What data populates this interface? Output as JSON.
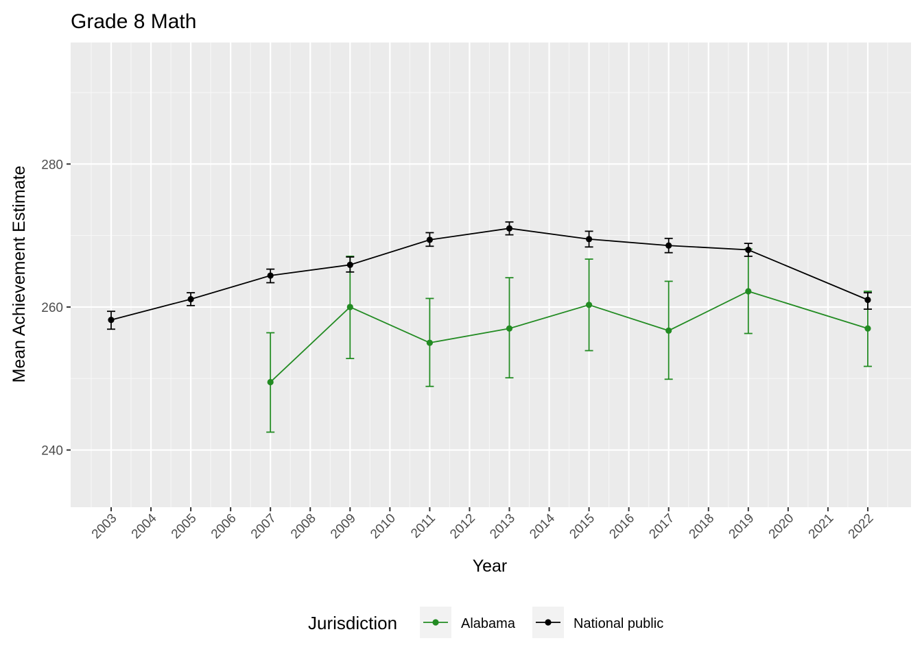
{
  "chart_data": {
    "type": "line",
    "title": "Grade 8 Math",
    "xlabel": "Year",
    "ylabel": "Mean Achievement Estimate",
    "ylim": [
      232,
      297
    ],
    "yticks": [
      240,
      260,
      280
    ],
    "x": [
      "2003",
      "2004",
      "2005",
      "2006",
      "2007",
      "2008",
      "2009",
      "2010",
      "2011",
      "2012",
      "2013",
      "2014",
      "2015",
      "2016",
      "2017",
      "2018",
      "2019",
      "2020",
      "2021",
      "2022"
    ],
    "grid": true,
    "legend": {
      "title": "Jurisdiction",
      "position": "bottom"
    },
    "series": [
      {
        "name": "Alabama",
        "color": "#228B22",
        "points": [
          {
            "x": "2007",
            "y": 249.5,
            "low": 242.5,
            "high": 256.4
          },
          {
            "x": "2009",
            "y": 260.0,
            "low": 252.8,
            "high": 267.1
          },
          {
            "x": "2011",
            "y": 255.0,
            "low": 248.9,
            "high": 261.2
          },
          {
            "x": "2013",
            "y": 257.0,
            "low": 250.1,
            "high": 264.1
          },
          {
            "x": "2015",
            "y": 260.3,
            "low": 253.9,
            "high": 266.7
          },
          {
            "x": "2017",
            "y": 256.7,
            "low": 249.9,
            "high": 263.6
          },
          {
            "x": "2019",
            "y": 262.2,
            "low": 256.3,
            "high": 268.1
          },
          {
            "x": "2022",
            "y": 257.0,
            "low": 251.7,
            "high": 262.2
          }
        ]
      },
      {
        "name": "National public",
        "color": "#000000",
        "points": [
          {
            "x": "2003",
            "y": 258.2,
            "low": 256.9,
            "high": 259.4
          },
          {
            "x": "2005",
            "y": 261.1,
            "low": 260.2,
            "high": 262.0
          },
          {
            "x": "2007",
            "y": 264.4,
            "low": 263.4,
            "high": 265.3
          },
          {
            "x": "2009",
            "y": 265.9,
            "low": 264.9,
            "high": 267.0
          },
          {
            "x": "2011",
            "y": 269.4,
            "low": 268.5,
            "high": 270.4
          },
          {
            "x": "2013",
            "y": 271.0,
            "low": 270.1,
            "high": 271.9
          },
          {
            "x": "2015",
            "y": 269.5,
            "low": 268.4,
            "high": 270.6
          },
          {
            "x": "2017",
            "y": 268.6,
            "low": 267.6,
            "high": 269.6
          },
          {
            "x": "2019",
            "y": 268.0,
            "low": 267.1,
            "high": 268.9
          },
          {
            "x": "2022",
            "y": 261.0,
            "low": 259.7,
            "high": 262.0
          }
        ]
      }
    ]
  }
}
